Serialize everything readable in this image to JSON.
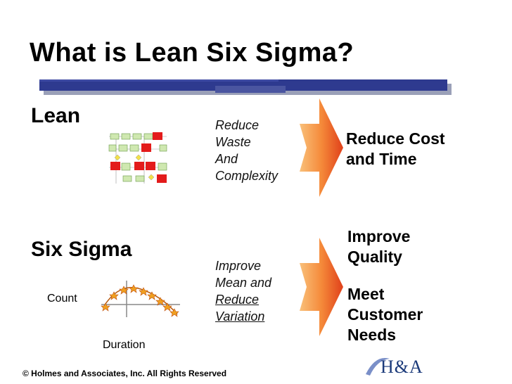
{
  "title": "What is Lean Six Sigma?",
  "lean": {
    "heading": "Lean",
    "actions": [
      "Reduce",
      "Waste",
      "And",
      "Complexity"
    ],
    "outcome": [
      "Reduce Cost",
      "and Time"
    ]
  },
  "six_sigma": {
    "heading": "Six Sigma",
    "actions": [
      "Improve",
      "Mean and",
      "Reduce",
      "Variation"
    ],
    "outcome": [
      "Improve",
      "Quality",
      "",
      "Meet",
      "Customer",
      "Needs"
    ],
    "chart_labels": {
      "y": "Count",
      "x": "Duration"
    }
  },
  "footer": "© Holmes and Associates, Inc.  All Rights Reserved",
  "logo": "H&A",
  "colors": {
    "title_rule": "#2e3a8f",
    "arrow_light": "#f7a64a",
    "arrow_dark": "#e0401a",
    "flow_red": "#e31b1b",
    "flow_green": "#cfe8b0",
    "star": "#e8a020"
  }
}
